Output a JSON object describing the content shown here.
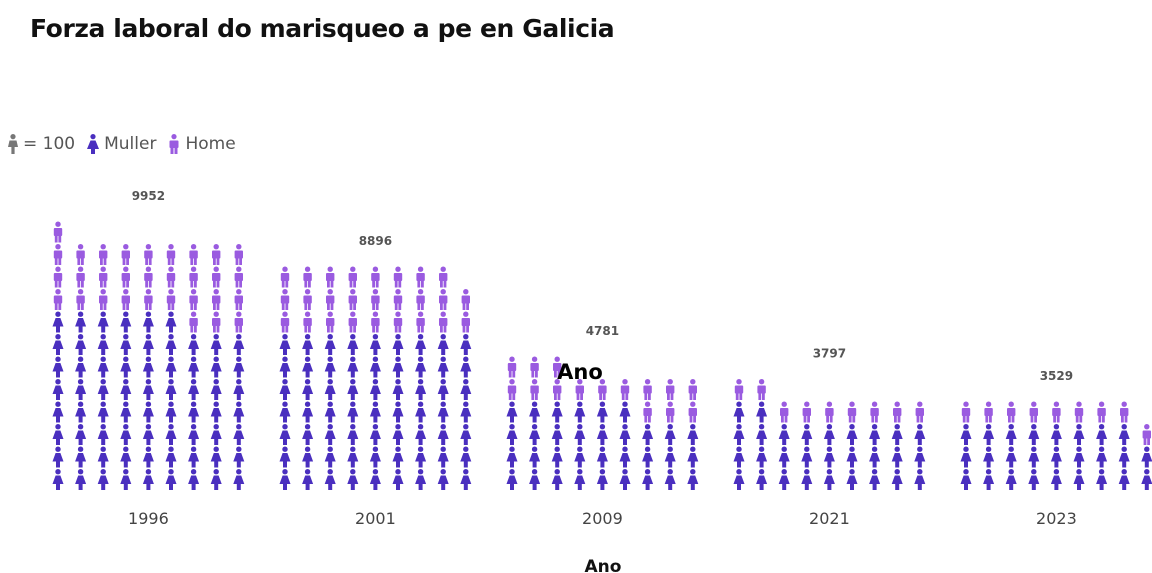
{
  "chart_data": {
    "type": "pictogram",
    "title": "Forza laboral do marisqueo a pe en Galicia",
    "xlabel": "Ano",
    "overlay_label": "Ano",
    "unit_label": "= 100",
    "unit_value": 100,
    "legend_position": "top-left",
    "categories": [
      "1996",
      "2001",
      "2009",
      "2021",
      "2023"
    ],
    "totals": [
      9952,
      8896,
      4781,
      3797,
      3529
    ],
    "series": [
      {
        "name": "Muller",
        "color": "#4a2fbf",
        "values": [
          6900,
          6300,
          3300,
          2900,
          2600
        ]
      },
      {
        "name": "Home",
        "color": "#9a5be0",
        "values": [
          3052,
          2596,
          1481,
          897,
          929
        ]
      }
    ]
  },
  "colors": {
    "unit_icon": "#777777",
    "muller": "#4a2fbf",
    "home": "#9a5be0"
  },
  "icons": {
    "unit": "person-icon",
    "muller": "woman-icon",
    "home": "man-icon"
  }
}
